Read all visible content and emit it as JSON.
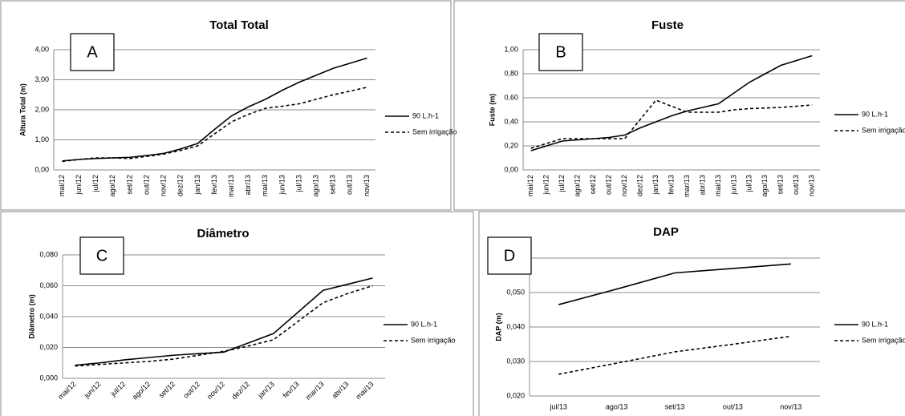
{
  "chart_data": [
    {
      "type": "line",
      "panel_label": "A",
      "title": "Total Total",
      "y_label": "Altura Total (m)",
      "categories": [
        "mai/12",
        "jun/12",
        "jul/12",
        "ago/12",
        "set/12",
        "out/12",
        "nov/12",
        "dez/12",
        "jan/13",
        "fev/13",
        "mar/13",
        "abr/13",
        "mai/13",
        "jun/13",
        "jul/13",
        "ago/13",
        "set/13",
        "out/13",
        "nov/13"
      ],
      "series": [
        {
          "name": "90 L.h-1",
          "color": "#000000",
          "line_style": "solid",
          "values": [
            0.3,
            0.35,
            0.38,
            0.4,
            0.42,
            0.48,
            0.55,
            0.7,
            0.88,
            1.35,
            1.8,
            2.1,
            2.35,
            2.65,
            2.92,
            3.15,
            3.38,
            3.55,
            3.72
          ]
        },
        {
          "name": "Sem irrigação",
          "color": "#000000",
          "line_style": "dashed",
          "values": [
            0.28,
            0.35,
            0.4,
            0.4,
            0.38,
            0.45,
            0.53,
            0.65,
            0.8,
            1.2,
            1.6,
            1.85,
            2.05,
            2.12,
            2.2,
            2.35,
            2.5,
            2.62,
            2.75
          ]
        }
      ],
      "ylim": [
        0,
        4
      ],
      "yticks": [
        {
          "value": 0,
          "label": "0,00"
        },
        {
          "value": 1,
          "label": "1,00"
        },
        {
          "value": 2,
          "label": "2,00"
        },
        {
          "value": 3,
          "label": "3,00"
        },
        {
          "value": 4,
          "label": "4,00"
        }
      ],
      "grid": true,
      "legend": "right"
    },
    {
      "type": "line",
      "panel_label": "B",
      "title": "Fuste",
      "y_label": "Fuste (m)",
      "categories": [
        "mai/12",
        "jun/12",
        "jul/12",
        "ago/12",
        "set/12",
        "out/12",
        "nov/12",
        "dez/12",
        "jan/13",
        "fev/13",
        "mar/13",
        "abr/13",
        "mai/13",
        "jun/13",
        "jul/13",
        "ago/13",
        "set/13",
        "out/13",
        "nov/13"
      ],
      "series": [
        {
          "name": "90 L.h-1",
          "color": "#000000",
          "line_style": "solid",
          "values": [
            0.16,
            0.2,
            0.24,
            0.25,
            0.26,
            0.27,
            0.29,
            0.35,
            0.4,
            0.45,
            0.49,
            0.52,
            0.55,
            0.64,
            0.73,
            0.8,
            0.87,
            0.91,
            0.95
          ]
        },
        {
          "name": "Sem irrigação",
          "color": "#000000",
          "line_style": "dashed",
          "values": [
            0.18,
            0.22,
            0.26,
            0.26,
            0.26,
            0.26,
            0.26,
            0.42,
            0.58,
            0.53,
            0.48,
            0.48,
            0.48,
            0.5,
            0.51,
            0.515,
            0.52,
            0.53,
            0.54
          ]
        }
      ],
      "ylim": [
        0,
        1
      ],
      "yticks": [
        {
          "value": 0,
          "label": "0,00"
        },
        {
          "value": 0.2,
          "label": "0,20"
        },
        {
          "value": 0.4,
          "label": "0,40"
        },
        {
          "value": 0.6,
          "label": "0,60"
        },
        {
          "value": 0.8,
          "label": "0,80"
        },
        {
          "value": 1,
          "label": "1,00"
        }
      ],
      "grid": true,
      "legend": "right"
    },
    {
      "type": "line",
      "panel_label": "C",
      "title": "Diâmetro",
      "y_label": "Diâmetro (m)",
      "categories": [
        "mai/12",
        "jun/12",
        "jul/12",
        "ago/12",
        "set/12",
        "out/12",
        "nov/12",
        "dez/12",
        "jan/13",
        "fev/13",
        "mar/13",
        "abr/13",
        "mai/13"
      ],
      "series": [
        {
          "name": "90 L.h-1",
          "color": "#000000",
          "line_style": "solid",
          "values": [
            0.0085,
            0.01,
            0.012,
            0.0135,
            0.015,
            0.016,
            0.017,
            0.023,
            0.029,
            0.043,
            0.057,
            0.061,
            0.065
          ]
        },
        {
          "name": "Sem irrigação",
          "color": "#000000",
          "line_style": "dashed",
          "values": [
            0.008,
            0.009,
            0.01,
            0.011,
            0.0125,
            0.015,
            0.0175,
            0.021,
            0.025,
            0.037,
            0.049,
            0.055,
            0.06
          ]
        }
      ],
      "ylim": [
        0,
        0.08
      ],
      "yticks": [
        {
          "value": 0,
          "label": "0,000"
        },
        {
          "value": 0.02,
          "label": "0,020"
        },
        {
          "value": 0.04,
          "label": "0,040"
        },
        {
          "value": 0.06,
          "label": "0,060"
        },
        {
          "value": 0.08,
          "label": "0,080"
        }
      ],
      "grid": true,
      "legend": "right"
    },
    {
      "type": "line",
      "panel_label": "D",
      "title": "DAP",
      "y_label": "DAP (m)",
      "categories": [
        "jul/13",
        "ago/13",
        "set/13",
        "out/13",
        "nov/13"
      ],
      "series": [
        {
          "name": "90 L.h-1",
          "color": "#000000",
          "line_style": "solid",
          "values": [
            0.0465,
            0.051,
            0.0557,
            0.057,
            0.0583
          ]
        },
        {
          "name": "Sem irrigação",
          "color": "#000000",
          "line_style": "dashed",
          "values": [
            0.0263,
            0.0295,
            0.0328,
            0.035,
            0.0373
          ]
        }
      ],
      "ylim": [
        0.02,
        0.06
      ],
      "yticks": [
        {
          "value": 0.02,
          "label": "0,020"
        },
        {
          "value": 0.03,
          "label": "0,030"
        },
        {
          "value": 0.04,
          "label": "0,040"
        },
        {
          "value": 0.05,
          "label": "0,050"
        },
        {
          "value": 0.06,
          "label": "0,060"
        }
      ],
      "grid": true,
      "legend": "right"
    }
  ]
}
